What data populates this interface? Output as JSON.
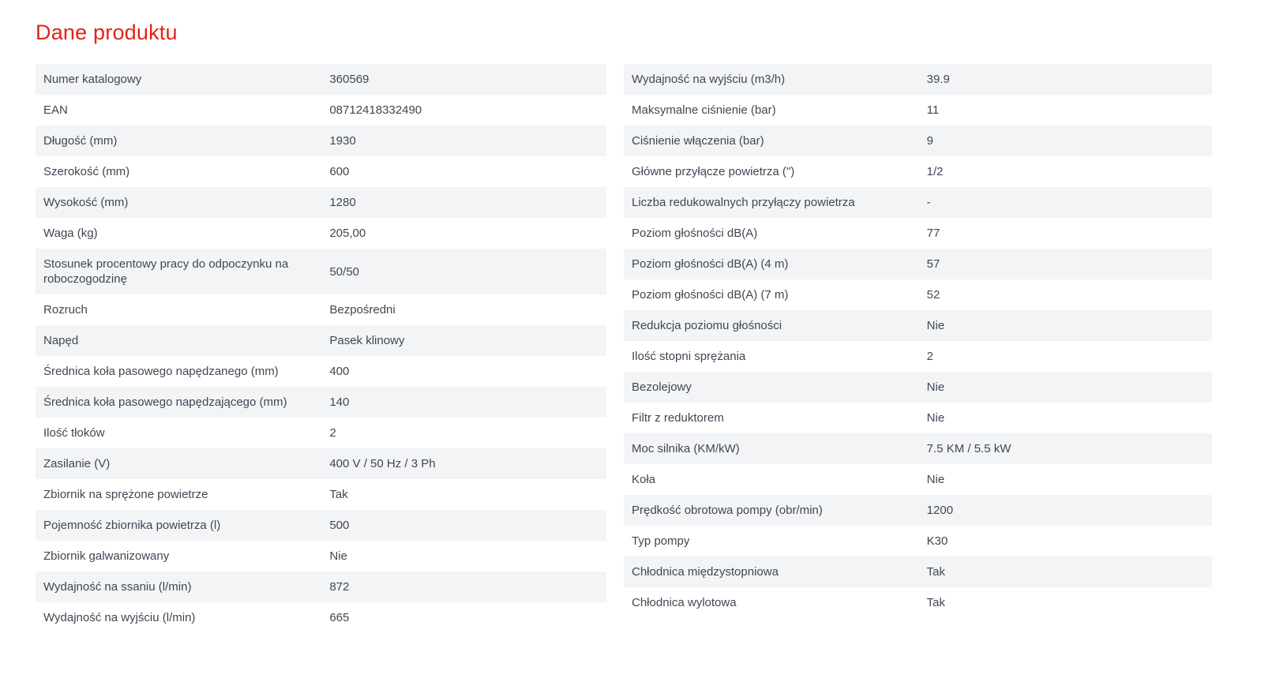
{
  "title": "Dane produktu",
  "accent_color": "#e2231a",
  "row_stripe_color": "#f3f4f6",
  "text_color": "#3f4753",
  "tables": {
    "left": {
      "rows": [
        {
          "label": "Numer katalogowy",
          "value": "360569"
        },
        {
          "label": "EAN",
          "value": "08712418332490"
        },
        {
          "label": "Długość (mm)",
          "value": "1930"
        },
        {
          "label": "Szerokość (mm)",
          "value": "600"
        },
        {
          "label": "Wysokość (mm)",
          "value": "1280"
        },
        {
          "label": "Waga (kg)",
          "value": "205,00"
        },
        {
          "label": "Stosunek procentowy pracy do odpoczynku na roboczogodzinę",
          "value": "50/50"
        },
        {
          "label": "Rozruch",
          "value": "Bezpośredni"
        },
        {
          "label": "Napęd",
          "value": "Pasek klinowy"
        },
        {
          "label": "Średnica koła pasowego napędzanego (mm)",
          "value": "400"
        },
        {
          "label": "Średnica koła pasowego napędzającego (mm)",
          "value": "140"
        },
        {
          "label": "Ilość tłoków",
          "value": "2"
        },
        {
          "label": "Zasilanie (V)",
          "value": "400 V / 50 Hz / 3 Ph"
        },
        {
          "label": "Zbiornik na sprężone powietrze",
          "value": "Tak"
        },
        {
          "label": "Pojemność zbiornika powietrza (l)",
          "value": "500"
        },
        {
          "label": "Zbiornik galwanizowany",
          "value": "Nie"
        },
        {
          "label": "Wydajność na ssaniu (l/min)",
          "value": "872"
        },
        {
          "label": "Wydajność na wyjściu (l/min)",
          "value": "665"
        }
      ]
    },
    "right": {
      "rows": [
        {
          "label": "Wydajność na wyjściu (m3/h)",
          "value": "39.9"
        },
        {
          "label": "Maksymalne ciśnienie (bar)",
          "value": "11"
        },
        {
          "label": "Ciśnienie włączenia (bar)",
          "value": "9"
        },
        {
          "label": "Główne przyłącze powietrza (\")",
          "value": "1/2"
        },
        {
          "label": "Liczba redukowalnych przyłączy powietrza",
          "value": "-"
        },
        {
          "label": "Poziom głośności dB(A)",
          "value": "77"
        },
        {
          "label": "Poziom głośności dB(A) (4 m)",
          "value": "57"
        },
        {
          "label": "Poziom głośności dB(A) (7 m)",
          "value": "52"
        },
        {
          "label": "Redukcja poziomu głośności",
          "value": "Nie"
        },
        {
          "label": "Ilość stopni sprężania",
          "value": "2"
        },
        {
          "label": "Bezolejowy",
          "value": "Nie"
        },
        {
          "label": "Filtr z reduktorem",
          "value": "Nie"
        },
        {
          "label": "Moc silnika (KM/kW)",
          "value": "7.5 KM / 5.5 kW"
        },
        {
          "label": "Koła",
          "value": "Nie"
        },
        {
          "label": "Prędkość obrotowa pompy (obr/min)",
          "value": "1200"
        },
        {
          "label": "Typ pompy",
          "value": "K30"
        },
        {
          "label": "Chłodnica międzystopniowa",
          "value": "Tak"
        },
        {
          "label": "Chłodnica wylotowa",
          "value": "Tak"
        }
      ]
    }
  }
}
